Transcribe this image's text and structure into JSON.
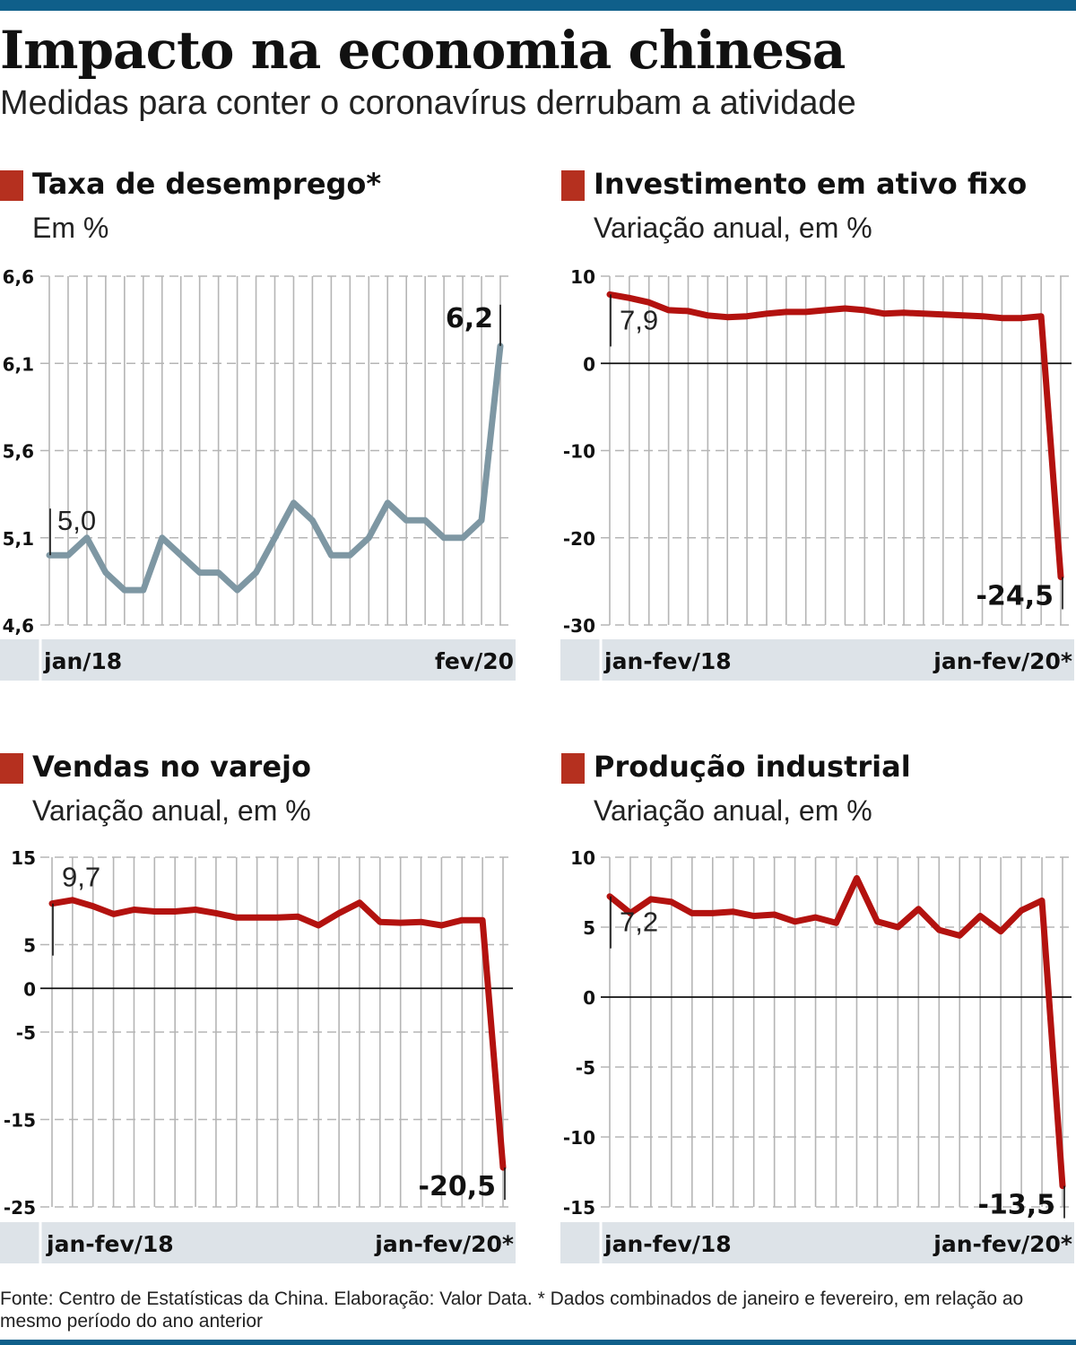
{
  "header": {
    "title": "Impacto na economia chinesa",
    "subtitle": "Medidas para conter o coronavírus derrubam a atividade"
  },
  "colors": {
    "accent_bar": "#0f5f8a",
    "marker": "#b5301f",
    "line_red": "#b3120f",
    "line_gray": "#7e97a3",
    "axis_band": "#dde3e8",
    "grid": "#b5b5b5"
  },
  "source_note": "Fonte: Centro de Estatísticas da China. Elaboração: Valor Data. * Dados combinados de janeiro e fevereiro, em relação ao mesmo período do ano anterior",
  "chart_data": [
    {
      "type": "line",
      "title": "Taxa de desemprego*",
      "subtitle": "Em %",
      "x_start_label": "jan/18",
      "x_end_label": "fev/20",
      "ylim": [
        4.6,
        6.6
      ],
      "y_ticks": [
        4.6,
        5.1,
        5.6,
        6.1,
        6.6
      ],
      "y_tick_labels": [
        "4,6",
        "5,1",
        "5,6",
        "6,1",
        "6,6"
      ],
      "zero_line": false,
      "grid": true,
      "color": "#7e97a3",
      "first_label": "5,0",
      "last_label": "6,2",
      "values": [
        5.0,
        5.0,
        5.1,
        4.9,
        4.8,
        4.8,
        5.1,
        5.0,
        4.9,
        4.9,
        4.8,
        4.9,
        5.1,
        5.3,
        5.2,
        5.0,
        5.0,
        5.1,
        5.3,
        5.2,
        5.2,
        5.1,
        5.1,
        5.2,
        6.2
      ]
    },
    {
      "type": "line",
      "title": "Investimento em ativo fixo",
      "subtitle": "Variação anual,  em %",
      "x_start_label": "jan-fev/18",
      "x_end_label": "jan-fev/20*",
      "ylim": [
        -30,
        10
      ],
      "y_ticks": [
        -30,
        -20,
        -10,
        0,
        10
      ],
      "y_tick_labels": [
        "-30",
        "-20",
        "-10",
        "0",
        "10"
      ],
      "zero_line": true,
      "grid": true,
      "color": "#b3120f",
      "first_label": "7,9",
      "last_label": "-24,5",
      "values": [
        7.9,
        7.5,
        7.0,
        6.1,
        6.0,
        5.5,
        5.3,
        5.4,
        5.7,
        5.9,
        5.9,
        6.1,
        6.3,
        6.1,
        5.7,
        5.8,
        5.7,
        5.6,
        5.5,
        5.4,
        5.2,
        5.2,
        5.4,
        -24.5
      ]
    },
    {
      "type": "line",
      "title": "Vendas no varejo",
      "subtitle": "Variação anual,  em %",
      "x_start_label": "jan-fev/18",
      "x_end_label": "jan-fev/20*",
      "ylim": [
        -25,
        15
      ],
      "y_ticks": [
        -25,
        -15,
        -5,
        0,
        5,
        15
      ],
      "y_tick_labels": [
        "-25",
        "-15",
        "-5",
        "0",
        "5",
        "15"
      ],
      "zero_line": true,
      "grid": true,
      "color": "#b3120f",
      "first_label": "9,7",
      "last_label": "-20,5",
      "values": [
        9.7,
        10.1,
        9.4,
        8.5,
        9.0,
        8.8,
        8.8,
        9.0,
        8.6,
        8.1,
        8.1,
        8.1,
        8.2,
        7.2,
        8.6,
        9.8,
        7.6,
        7.5,
        7.6,
        7.2,
        7.8,
        7.8,
        -20.5
      ]
    },
    {
      "type": "line",
      "title": "Produção industrial",
      "subtitle": "Variação anual,  em %",
      "x_start_label": "jan-fev/18",
      "x_end_label": "jan-fev/20*",
      "ylim": [
        -15,
        10
      ],
      "y_ticks": [
        -15,
        -10,
        -5,
        0,
        5,
        10
      ],
      "y_tick_labels": [
        "-15",
        "-10",
        "-5",
        "0",
        "5",
        "10"
      ],
      "zero_line": true,
      "grid": true,
      "color": "#b3120f",
      "first_label": "7,2",
      "last_label": "-13,5",
      "values": [
        7.2,
        6.0,
        7.0,
        6.8,
        6.0,
        6.0,
        6.1,
        5.8,
        5.9,
        5.4,
        5.7,
        5.3,
        8.5,
        5.4,
        5.0,
        6.3,
        4.8,
        4.4,
        5.8,
        4.7,
        6.2,
        6.9,
        -13.5
      ]
    }
  ]
}
